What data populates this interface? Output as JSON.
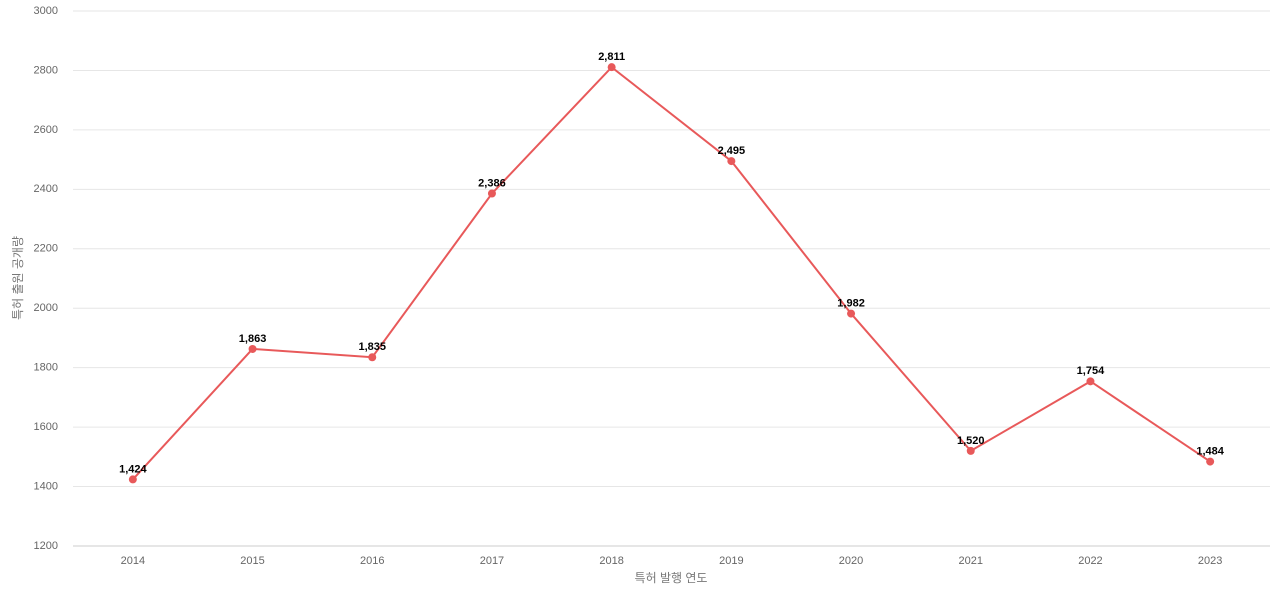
{
  "chart_data": {
    "type": "line",
    "x_label": "특허 발행 연도",
    "y_label": "특허 출원 공개량",
    "categories": [
      "2014",
      "2015",
      "2016",
      "2017",
      "2018",
      "2019",
      "2020",
      "2021",
      "2022",
      "2023"
    ],
    "values": [
      1424,
      1863,
      1835,
      2386,
      2811,
      2495,
      1982,
      1520,
      1754,
      1484
    ],
    "value_labels": [
      "1,424",
      "1,863",
      "1,835",
      "2,386",
      "2,811",
      "2,495",
      "1,982",
      "1,520",
      "1,754",
      "1,484"
    ],
    "color": "#e8595a",
    "ylim": [
      1200,
      3000
    ],
    "yticks": [
      1200,
      1400,
      1600,
      1800,
      2000,
      2200,
      2400,
      2600,
      2800,
      3000
    ],
    "grid": true
  }
}
